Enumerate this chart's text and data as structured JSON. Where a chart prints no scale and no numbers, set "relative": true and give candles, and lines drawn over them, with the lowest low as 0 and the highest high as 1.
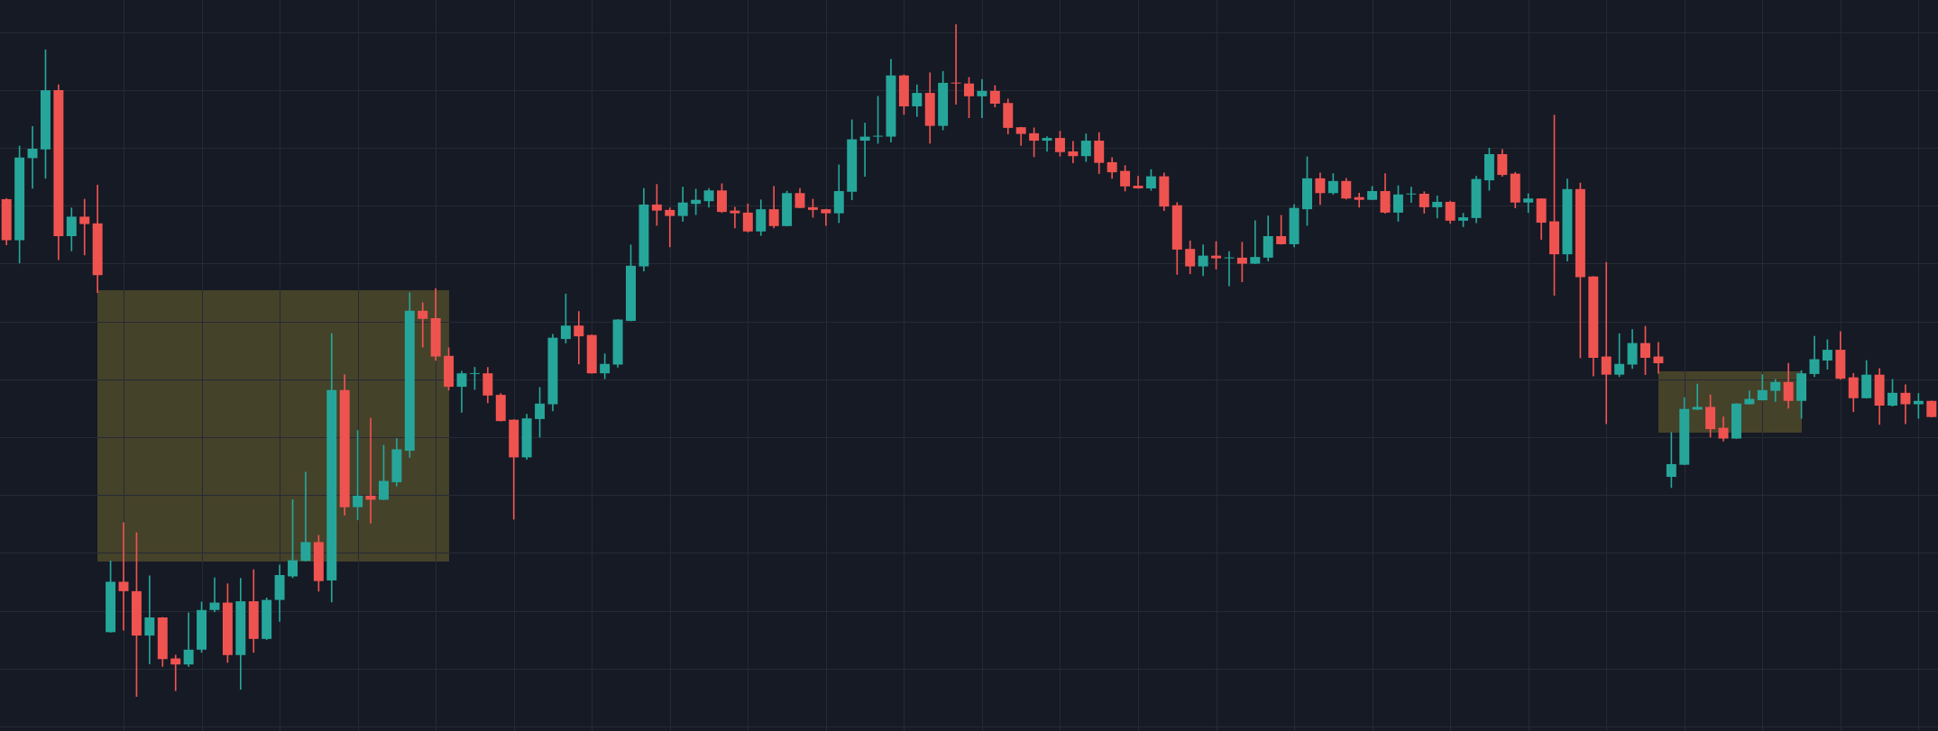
{
  "chart_data": {
    "type": "candlestick",
    "relative": true,
    "grid": true,
    "tick_labels": false,
    "categories": [
      null,
      null,
      null,
      null,
      null,
      null,
      null,
      null,
      null,
      null,
      null,
      null,
      null,
      null,
      null,
      null,
      null,
      null,
      null,
      null,
      null,
      null,
      null,
      null,
      null,
      null,
      null,
      null,
      null,
      null,
      null,
      null,
      null,
      null,
      null,
      null,
      null,
      null,
      null,
      null,
      null,
      null,
      null,
      null,
      null,
      null,
      null,
      null,
      null,
      null,
      null,
      null,
      null,
      null,
      null,
      null,
      null,
      null,
      null,
      null,
      null,
      null,
      null,
      null,
      null,
      null,
      null,
      null,
      null,
      null,
      null,
      null,
      null,
      null,
      null,
      null,
      null,
      null,
      null,
      null,
      null,
      null,
      null,
      null,
      null,
      null,
      null,
      null,
      null,
      null,
      null,
      null,
      null,
      null,
      null,
      null,
      null,
      null,
      null,
      null,
      null,
      null,
      null,
      null,
      null,
      null,
      null,
      null,
      null,
      null,
      null,
      null,
      null,
      null,
      null,
      null,
      null,
      null,
      null,
      null,
      null,
      null,
      null,
      null,
      null,
      null,
      null,
      null,
      null,
      null,
      null,
      null,
      null,
      null,
      null,
      null,
      null,
      null,
      null,
      null,
      null,
      null,
      null,
      null,
      null,
      null,
      null,
      null,
      null
    ],
    "ohlc": [
      [
        0.74,
        0.741,
        0.672,
        0.679
      ],
      [
        0.679,
        0.819,
        0.645,
        0.802
      ],
      [
        0.801,
        0.848,
        0.756,
        0.815
      ],
      [
        0.814,
        0.962,
        0.771,
        0.902
      ],
      [
        0.902,
        0.91,
        0.65,
        0.685
      ],
      [
        0.685,
        0.727,
        0.663,
        0.714
      ],
      [
        0.714,
        0.74,
        0.657,
        0.703
      ],
      [
        0.704,
        0.761,
        0.601,
        0.627
      ],
      [
        0.096,
        0.202,
        0.096,
        0.171
      ],
      [
        0.171,
        0.259,
        0.099,
        0.157
      ],
      [
        0.157,
        0.244,
        0,
        0.091
      ],
      [
        0.091,
        0.18,
        0.049,
        0.118
      ],
      [
        0.118,
        0.118,
        0.045,
        0.056
      ],
      [
        0.057,
        0.062,
        0.009,
        0.048
      ],
      [
        0.048,
        0.125,
        0.045,
        0.07
      ],
      [
        0.07,
        0.141,
        0.066,
        0.129
      ],
      [
        0.129,
        0.177,
        0.126,
        0.14
      ],
      [
        0.14,
        0.168,
        0.051,
        0.062
      ],
      [
        0.062,
        0.176,
        0.011,
        0.142
      ],
      [
        0.142,
        0.189,
        0.066,
        0.086
      ],
      [
        0.086,
        0.147,
        0.085,
        0.144
      ],
      [
        0.144,
        0.196,
        0.112,
        0.181
      ],
      [
        0.179,
        0.293,
        0.177,
        0.203
      ],
      [
        0.202,
        0.334,
        0.202,
        0.23
      ],
      [
        0.23,
        0.24,
        0.157,
        0.172
      ],
      [
        0.173,
        0.54,
        0.141,
        0.456
      ],
      [
        0.456,
        0.479,
        0.27,
        0.282
      ],
      [
        0.282,
        0.396,
        0.263,
        0.299
      ],
      [
        0.299,
        0.414,
        0.258,
        0.293
      ],
      [
        0.293,
        0.374,
        0.293,
        0.321
      ],
      [
        0.319,
        0.384,
        0.313,
        0.368
      ],
      [
        0.366,
        0.601,
        0.356,
        0.574
      ],
      [
        0.574,
        0.586,
        0.52,
        0.562
      ],
      [
        0.563,
        0.607,
        0.5,
        0.506
      ],
      [
        0.507,
        0.519,
        0.456,
        0.461
      ],
      [
        0.461,
        0.484,
        0.423,
        0.481
      ],
      [
        0.48,
        0.49,
        0.457,
        0.481
      ],
      [
        0.481,
        0.49,
        0.437,
        0.448
      ],
      [
        0.449,
        0.451,
        0.41,
        0.41
      ],
      [
        0.412,
        0.412,
        0.264,
        0.356
      ],
      [
        0.356,
        0.42,
        0.353,
        0.414
      ],
      [
        0.413,
        0.46,
        0.386,
        0.436
      ],
      [
        0.435,
        0.539,
        0.425,
        0.534
      ],
      [
        0.532,
        0.599,
        0.526,
        0.552
      ],
      [
        0.552,
        0.573,
        0.495,
        0.536
      ],
      [
        0.538,
        0.538,
        0.481,
        0.481
      ],
      [
        0.481,
        0.51,
        0.473,
        0.495
      ],
      [
        0.494,
        0.561,
        0.49,
        0.561
      ],
      [
        0.559,
        0.672,
        0.559,
        0.641
      ],
      [
        0.64,
        0.756,
        0.633,
        0.732
      ],
      [
        0.732,
        0.762,
        0.701,
        0.723
      ],
      [
        0.724,
        0.727,
        0.669,
        0.715
      ],
      [
        0.715,
        0.758,
        0.707,
        0.735
      ],
      [
        0.733,
        0.755,
        0.717,
        0.739
      ],
      [
        0.737,
        0.756,
        0.728,
        0.753
      ],
      [
        0.753,
        0.763,
        0.72,
        0.721
      ],
      [
        0.723,
        0.728,
        0.697,
        0.719
      ],
      [
        0.72,
        0.733,
        0.691,
        0.692
      ],
      [
        0.692,
        0.739,
        0.686,
        0.725
      ],
      [
        0.725,
        0.759,
        0.697,
        0.7
      ],
      [
        0.7,
        0.752,
        0.7,
        0.749
      ],
      [
        0.749,
        0.756,
        0.727,
        0.727
      ],
      [
        0.728,
        0.74,
        0.713,
        0.724
      ],
      [
        0.725,
        0.725,
        0.701,
        0.719
      ],
      [
        0.719,
        0.791,
        0.705,
        0.752
      ],
      [
        0.751,
        0.858,
        0.739,
        0.829
      ],
      [
        0.827,
        0.853,
        0.774,
        0.833
      ],
      [
        0.833,
        0.893,
        0.823,
        0.834
      ],
      [
        0.833,
        0.948,
        0.825,
        0.924
      ],
      [
        0.924,
        0.925,
        0.866,
        0.878
      ],
      [
        0.878,
        0.91,
        0.863,
        0.898
      ],
      [
        0.898,
        0.928,
        0.823,
        0.849
      ],
      [
        0.849,
        0.93,
        0.843,
        0.913
      ],
      [
        0.913,
        1,
        0.881,
        0.912
      ],
      [
        0.912,
        0.921,
        0.861,
        0.893
      ],
      [
        0.893,
        0.918,
        0.861,
        0.901
      ],
      [
        0.901,
        0.909,
        0.877,
        0.882
      ],
      [
        0.883,
        0.889,
        0.837,
        0.846
      ],
      [
        0.847,
        0.847,
        0.82,
        0.837
      ],
      [
        0.838,
        0.846,
        0.803,
        0.827
      ],
      [
        0.827,
        0.833,
        0.811,
        0.831
      ],
      [
        0.831,
        0.841,
        0.804,
        0.81
      ],
      [
        0.811,
        0.826,
        0.794,
        0.804
      ],
      [
        0.804,
        0.837,
        0.796,
        0.827
      ],
      [
        0.827,
        0.839,
        0.778,
        0.794
      ],
      [
        0.795,
        0.802,
        0.771,
        0.78
      ],
      [
        0.782,
        0.79,
        0.752,
        0.759
      ],
      [
        0.76,
        0.774,
        0.756,
        0.756
      ],
      [
        0.756,
        0.784,
        0.753,
        0.774
      ],
      [
        0.774,
        0.779,
        0.723,
        0.729
      ],
      [
        0.731,
        0.735,
        0.628,
        0.665
      ],
      [
        0.666,
        0.678,
        0.629,
        0.64
      ],
      [
        0.64,
        0.672,
        0.626,
        0.656
      ],
      [
        0.656,
        0.677,
        0.636,
        0.652
      ],
      [
        0.652,
        0.662,
        0.611,
        0.653
      ],
      [
        0.653,
        0.676,
        0.617,
        0.644
      ],
      [
        0.644,
        0.708,
        0.644,
        0.654
      ],
      [
        0.653,
        0.715,
        0.648,
        0.685
      ],
      [
        0.685,
        0.716,
        0.673,
        0.673
      ],
      [
        0.673,
        0.732,
        0.669,
        0.727
      ],
      [
        0.725,
        0.803,
        0.701,
        0.771
      ],
      [
        0.771,
        0.779,
        0.732,
        0.749
      ],
      [
        0.749,
        0.778,
        0.747,
        0.767
      ],
      [
        0.767,
        0.771,
        0.74,
        0.741
      ],
      [
        0.743,
        0.749,
        0.728,
        0.739
      ],
      [
        0.739,
        0.759,
        0.739,
        0.752
      ],
      [
        0.752,
        0.778,
        0.719,
        0.72
      ],
      [
        0.72,
        0.76,
        0.707,
        0.747
      ],
      [
        0.747,
        0.758,
        0.735,
        0.748
      ],
      [
        0.748,
        0.751,
        0.719,
        0.728
      ],
      [
        0.728,
        0.745,
        0.712,
        0.736
      ],
      [
        0.736,
        0.737,
        0.704,
        0.708
      ],
      [
        0.708,
        0.719,
        0.699,
        0.713
      ],
      [
        0.712,
        0.774,
        0.705,
        0.77
      ],
      [
        0.768,
        0.816,
        0.753,
        0.807
      ],
      [
        0.807,
        0.814,
        0.774,
        0.776
      ],
      [
        0.778,
        0.78,
        0.727,
        0.735
      ],
      [
        0.735,
        0.748,
        0.72,
        0.741
      ],
      [
        0.741,
        0.741,
        0.68,
        0.705
      ],
      [
        0.707,
        0.865,
        0.597,
        0.658
      ],
      [
        0.658,
        0.77,
        0.648,
        0.755
      ],
      [
        0.755,
        0.764,
        0.504,
        0.624
      ],
      [
        0.625,
        0.625,
        0.477,
        0.504
      ],
      [
        0.506,
        0.646,
        0.406,
        0.479
      ],
      [
        0.479,
        0.54,
        0.476,
        0.495
      ],
      [
        0.494,
        0.546,
        0.488,
        0.526
      ],
      [
        0.526,
        0.551,
        0.479,
        0.504
      ],
      [
        0.506,
        0.527,
        0.481,
        0.496
      ],
      [
        0.327,
        0.393,
        0.311,
        0.346
      ],
      [
        0.345,
        0.445,
        0.345,
        0.428
      ],
      [
        0.427,
        0.465,
        0.427,
        0.431
      ],
      [
        0.431,
        0.449,
        0.386,
        0.398
      ],
      [
        0.4,
        0.416,
        0.38,
        0.384
      ],
      [
        0.384,
        0.436,
        0.384,
        0.436
      ],
      [
        0.435,
        0.455,
        0.435,
        0.443
      ],
      [
        0.441,
        0.479,
        0.441,
        0.456
      ],
      [
        0.455,
        0.472,
        0.439,
        0.468
      ],
      [
        0.468,
        0.496,
        0.429,
        0.44
      ],
      [
        0.44,
        0.485,
        0.414,
        0.481
      ],
      [
        0.48,
        0.536,
        0.476,
        0.502
      ],
      [
        0.5,
        0.531,
        0.487,
        0.516
      ],
      [
        0.516,
        0.543,
        0.472,
        0.473
      ],
      [
        0.475,
        0.481,
        0.424,
        0.444
      ],
      [
        0.444,
        0.5,
        0.444,
        0.479
      ],
      [
        0.479,
        0.488,
        0.405,
        0.433
      ],
      [
        0.433,
        0.472,
        0.432,
        0.452
      ],
      [
        0.452,
        0.464,
        0.406,
        0.435
      ],
      [
        0.435,
        0.451,
        0.414,
        0.44
      ],
      [
        0.44,
        0.44,
        0.416,
        0.416
      ]
    ],
    "colors": [
      "#ef5350",
      "#26a69a",
      "#26a69a",
      "#26a69a",
      "#ef5350",
      "#26a69a",
      "#ef5350",
      "#ef5350",
      "#26a69a",
      "#ef5350",
      "#ef5350",
      "#26a69a",
      "#ef5350",
      "#ef5350",
      "#26a69a",
      "#26a69a",
      "#26a69a",
      "#ef5350",
      "#26a69a",
      "#ef5350",
      "#26a69a",
      "#26a69a",
      "#26a69a",
      "#26a69a",
      "#ef5350",
      "#26a69a",
      "#ef5350",
      "#26a69a",
      "#ef5350",
      "#26a69a",
      "#26a69a",
      "#26a69a",
      "#ef5350",
      "#ef5350",
      "#ef5350",
      "#26a69a",
      "#26a69a",
      "#ef5350",
      "#ef5350",
      "#ef5350",
      "#26a69a",
      "#26a69a",
      "#26a69a",
      "#26a69a",
      "#ef5350",
      "#ef5350",
      "#26a69a",
      "#26a69a",
      "#26a69a",
      "#26a69a",
      "#ef5350",
      "#ef5350",
      "#26a69a",
      "#26a69a",
      "#26a69a",
      "#ef5350",
      "#ef5350",
      "#ef5350",
      "#26a69a",
      "#ef5350",
      "#26a69a",
      "#ef5350",
      "#ef5350",
      "#ef5350",
      "#26a69a",
      "#26a69a",
      "#26a69a",
      "#26a69a",
      "#26a69a",
      "#ef5350",
      "#26a69a",
      "#ef5350",
      "#26a69a",
      "#ef5350",
      "#ef5350",
      "#26a69a",
      "#ef5350",
      "#ef5350",
      "#ef5350",
      "#ef5350",
      "#26a69a",
      "#ef5350",
      "#ef5350",
      "#26a69a",
      "#ef5350",
      "#ef5350",
      "#ef5350",
      "#ef5350",
      "#26a69a",
      "#ef5350",
      "#ef5350",
      "#ef5350",
      "#26a69a",
      "#ef5350",
      "#26a69a",
      "#ef5350",
      "#26a69a",
      "#26a69a",
      "#ef5350",
      "#26a69a",
      "#26a69a",
      "#ef5350",
      "#26a69a",
      "#ef5350",
      "#ef5350",
      "#26a69a",
      "#ef5350",
      "#26a69a",
      "#26a69a",
      "#ef5350",
      "#26a69a",
      "#ef5350",
      "#26a69a",
      "#26a69a",
      "#26a69a",
      "#ef5350",
      "#ef5350",
      "#26a69a",
      "#ef5350",
      "#ef5350",
      "#26a69a",
      "#ef5350",
      "#ef5350",
      "#ef5350",
      "#26a69a",
      "#26a69a",
      "#ef5350",
      "#ef5350",
      "#26a69a",
      "#26a69a",
      "#26a69a",
      "#ef5350",
      "#ef5350",
      "#26a69a",
      "#26a69a",
      "#26a69a",
      "#26a69a",
      "#ef5350",
      "#26a69a",
      "#26a69a",
      "#26a69a",
      "#ef5350",
      "#ef5350",
      "#26a69a",
      "#ef5350",
      "#26a69a",
      "#ef5350",
      "#26a69a",
      "#ef5350"
    ]
  }
}
